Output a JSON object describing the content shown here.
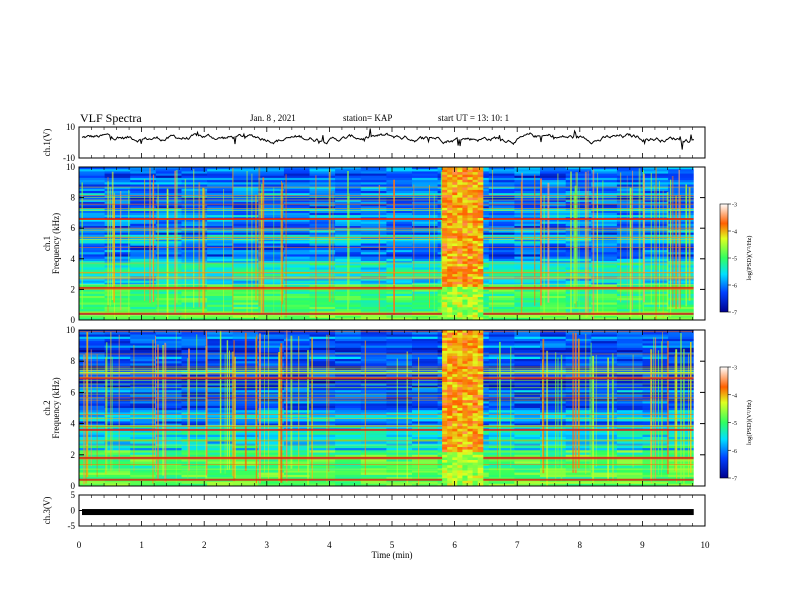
{
  "header": {
    "title": "VLF Spectra",
    "date": "Jan. 8 , 2021",
    "station": "station= KAP",
    "start": "start UT = 13: 10: 1"
  },
  "chart_data": [
    {
      "type": "line",
      "panel": "ch1-waveform",
      "ylabel": "ch.1(V)",
      "ylim": [
        -10,
        10
      ],
      "yticks": [
        "10",
        "-10"
      ],
      "xlim": [
        0,
        10
      ],
      "description_values": {
        "approx_mean": 3,
        "approx_min": -4,
        "approx_max": 8
      }
    },
    {
      "type": "heatmap",
      "panel": "ch1-spectrogram",
      "ylabel": "ch.1\nFrequency (kHz)",
      "ylabel_line1": "ch.1",
      "ylabel_line2": "Frequency (kHz)",
      "ylim": [
        0,
        10
      ],
      "yticks": [
        "0",
        "2",
        "4",
        "6",
        "8",
        "10"
      ],
      "xlim": [
        0,
        10
      ],
      "burst_interval_min": [
        5.8,
        6.45
      ],
      "strong_lines_khz": [
        0.4,
        2.1,
        6.6
      ],
      "colorbar": {
        "label": "log(PSD)(V²/Hz)",
        "range": [
          -7,
          -3
        ],
        "ticks": [
          "-3",
          "-4",
          "-5",
          "-6",
          "-7"
        ]
      }
    },
    {
      "type": "heatmap",
      "panel": "ch2-spectrogram",
      "ylabel": "ch.2\nFrequency (kHz)",
      "ylabel_line1": "ch.2",
      "ylabel_line2": "Frequency (kHz)",
      "ylim": [
        0,
        10
      ],
      "yticks": [
        "0",
        "2",
        "4",
        "6",
        "8",
        "10"
      ],
      "xlim": [
        0,
        10
      ],
      "burst_interval_min": [
        5.8,
        6.45
      ],
      "strong_lines_khz": [
        0.4,
        1.8,
        3.6,
        6.9
      ],
      "colorbar": {
        "label": "log(PSD)(V²/Hz)",
        "range": [
          -7,
          -3
        ],
        "ticks": [
          "-3",
          "-4",
          "-5",
          "-6",
          "-7"
        ]
      }
    },
    {
      "type": "line",
      "panel": "ch3-waveform",
      "ylabel": "ch.3(V)",
      "ylim": [
        -5,
        5
      ],
      "yticks": [
        "5",
        "0",
        "-5"
      ],
      "xlim": [
        0,
        10
      ],
      "xticks": [
        "0",
        "1",
        "2",
        "3",
        "4",
        "5",
        "6",
        "7",
        "8",
        "9",
        "10"
      ],
      "xlabel": "Time (min)",
      "approx_value": -0.5
    }
  ]
}
